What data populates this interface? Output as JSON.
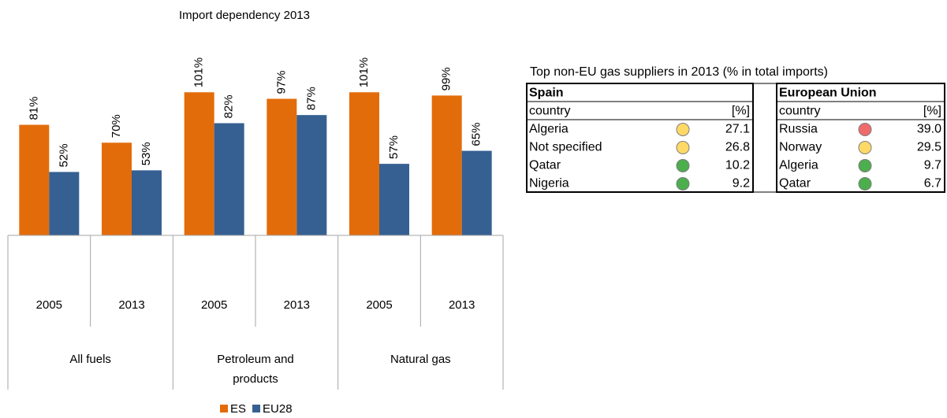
{
  "chart_data": {
    "type": "bar",
    "title": "Import dependency 2013",
    "categories": [
      "2005",
      "2013",
      "2005",
      "2013",
      "2005",
      "2013"
    ],
    "category_groups": [
      "All fuels",
      "Petroleum and products",
      "Natural gas"
    ],
    "series": [
      {
        "name": "ES",
        "color": "#e36c0a",
        "values": [
          81,
          70,
          101,
          97,
          101,
          99
        ],
        "value_labels": [
          "81%",
          "70%",
          "101%",
          "97%",
          "101%",
          "99%"
        ]
      },
      {
        "name": "EU28",
        "color": "#366092",
        "values": [
          52,
          53,
          82,
          87,
          57,
          65
        ],
        "value_labels": [
          "52%",
          "53%",
          "82%",
          "87%",
          "57%",
          "65%"
        ]
      }
    ],
    "ylim": [
      13,
      120
    ],
    "legend": "bottom"
  },
  "table": {
    "title": "Top non-EU gas suppliers in 2013 (% in total imports)",
    "panels": [
      {
        "name": "Spain",
        "header": [
          "country",
          "[%]"
        ],
        "rows": [
          {
            "country": "Algeria",
            "color": "#ffd966",
            "value": "27.1"
          },
          {
            "country": "Not specified",
            "color": "#ffd966",
            "value": "26.8"
          },
          {
            "country": "Qatar",
            "color": "#4cae4c",
            "value": "10.2"
          },
          {
            "country": "Nigeria",
            "color": "#4cae4c",
            "value": "9.2"
          }
        ]
      },
      {
        "name": "European Union",
        "header": [
          "country",
          "[%]"
        ],
        "rows": [
          {
            "country": "Russia",
            "color": "#ef6b6b",
            "value": "39.0"
          },
          {
            "country": "Norway",
            "color": "#ffd966",
            "value": "29.5"
          },
          {
            "country": "Algeria",
            "color": "#4cae4c",
            "value": "9.7"
          },
          {
            "country": "Qatar",
            "color": "#4cae4c",
            "value": "6.7"
          }
        ]
      }
    ]
  }
}
